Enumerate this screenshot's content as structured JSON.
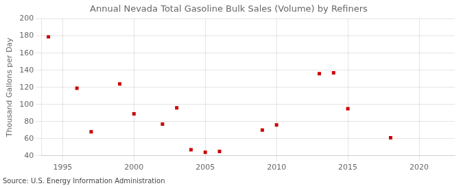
{
  "chart_data": {
    "type": "scatter",
    "title": "Annual Nevada Total Gasoline Bulk Sales (Volume) by Refiners",
    "ylabel": "Thousand Gallons per Day",
    "source": "Source: U.S. Energy Information Administration",
    "x": [
      1994,
      1996,
      1997,
      1999,
      2000,
      2002,
      2003,
      2004,
      2005,
      2006,
      2009,
      2010,
      2013,
      2014,
      2015,
      2018
    ],
    "values": [
      179,
      119,
      68,
      124,
      89,
      77,
      96,
      47,
      44,
      45,
      70,
      76,
      136,
      137,
      95,
      61
    ],
    "xlim": [
      1993.5,
      2022.5
    ],
    "xticks": [
      1995,
      2000,
      2005,
      2010,
      2015,
      2020
    ],
    "ylim": [
      40,
      200
    ],
    "yticks": [
      40,
      60,
      80,
      100,
      120,
      140,
      160,
      180,
      200
    ],
    "color": "#cc0000",
    "marker": "square",
    "grid": true
  }
}
